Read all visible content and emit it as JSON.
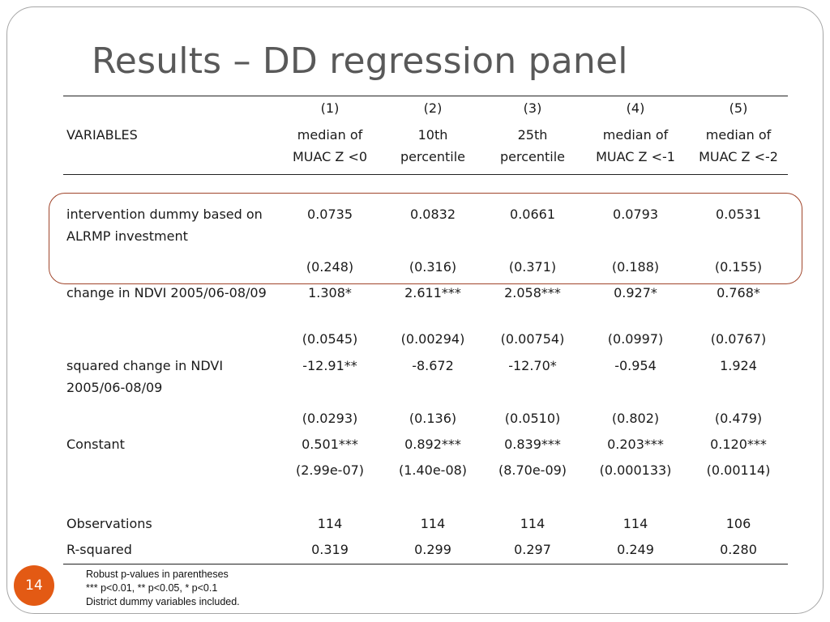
{
  "title": "Results – DD regression panel",
  "columns": [
    {
      "num": "(1)",
      "line1": "median of",
      "line2": "MUAC Z <0"
    },
    {
      "num": "(2)",
      "line1": "10th",
      "line2": "percentile"
    },
    {
      "num": "(3)",
      "line1": "25th",
      "line2": "percentile"
    },
    {
      "num": "(4)",
      "line1": "median of",
      "line2": "MUAC Z <-1"
    },
    {
      "num": "(5)",
      "line1": "median of",
      "line2": "MUAC Z <-2"
    }
  ],
  "variables_header": "VARIABLES",
  "rows": [
    {
      "label1": "intervention dummy based on",
      "label2": "ALRMP investment",
      "coef": [
        "0.0735",
        "0.0832",
        "0.0661",
        "0.0793",
        "0.0531"
      ],
      "se": [
        "(0.248)",
        "(0.316)",
        "(0.371)",
        "(0.188)",
        "(0.155)"
      ]
    },
    {
      "label1": "change in NDVI 2005/06-08/09",
      "label2": "",
      "coef": [
        "1.308*",
        "2.611***",
        "2.058***",
        "0.927*",
        "0.768*"
      ],
      "se": [
        "(0.0545)",
        "(0.00294)",
        "(0.00754)",
        "(0.0997)",
        "(0.0767)"
      ]
    },
    {
      "label1": "squared change in NDVI",
      "label2": "2005/06-08/09",
      "coef": [
        "-12.91**",
        "-8.672",
        "-12.70*",
        "-0.954",
        "1.924"
      ],
      "se": [
        "(0.0293)",
        "(0.136)",
        "(0.0510)",
        "(0.802)",
        "(0.479)"
      ]
    },
    {
      "label1": "Constant",
      "label2": "",
      "coef": [
        "0.501***",
        "0.892***",
        "0.839***",
        "0.203***",
        "0.120***"
      ],
      "se": [
        "(2.99e-07)",
        "(1.40e-08)",
        "(8.70e-09)",
        "(0.000133)",
        "(0.00114)"
      ]
    }
  ],
  "observations": {
    "label": "Observations",
    "values": [
      "114",
      "114",
      "114",
      "114",
      "106"
    ]
  },
  "r_squared": {
    "label": "R-squared",
    "values": [
      "0.319",
      "0.299",
      "0.297",
      "0.249",
      "0.280"
    ]
  },
  "notes": [
    "Robust p-values in parentheses",
    "*** p<0.01, ** p<0.05, * p<0.1",
    "District dummy variables included."
  ],
  "page_number": "14",
  "colors": {
    "title": "#595959",
    "highlight_border": "#a0452b",
    "badge": "#e35a14"
  }
}
